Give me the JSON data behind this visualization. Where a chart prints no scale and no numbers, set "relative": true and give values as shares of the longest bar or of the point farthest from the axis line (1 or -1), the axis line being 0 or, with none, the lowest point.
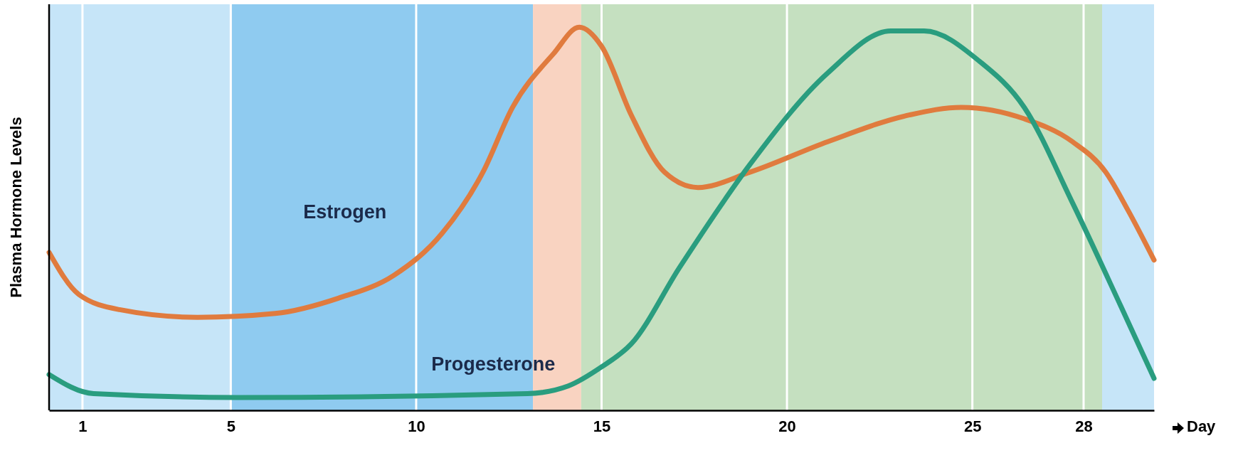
{
  "chart_data": {
    "type": "line",
    "relative": true,
    "ylabel": "Plasma Hormone Levels",
    "xlabel": "Day",
    "xlim": [
      0.1,
      29.9
    ],
    "xticks": [
      1,
      5,
      10,
      15,
      20,
      25,
      28
    ],
    "grid": "x",
    "line_style": "solid",
    "marker": "none",
    "legend": false,
    "bands": [
      {
        "axis": "x",
        "from": 0.1,
        "to": 5,
        "color": "#c6e5f8"
      },
      {
        "axis": "x",
        "from": 5,
        "to": 13.15,
        "color": "#8fcbf0"
      },
      {
        "axis": "x",
        "from": 13.15,
        "to": 14.45,
        "color": "#f9d3c1"
      },
      {
        "axis": "x",
        "from": 14.45,
        "to": 28.5,
        "color": "#c5e0c0"
      },
      {
        "axis": "x",
        "from": 28.5,
        "to": 29.9,
        "color": "#c6e5f8"
      }
    ],
    "series": [
      {
        "name": "Estrogen",
        "color": "#e07b3e",
        "x": [
          0.1,
          0.9,
          2,
          4.1,
          6.2,
          7.9,
          9.4,
          10.7,
          11.8,
          12.6,
          13.7,
          14.4,
          15,
          15.8,
          16.7,
          17.6,
          19,
          21.1,
          23.3,
          24.7,
          26.4,
          27.7,
          28.6,
          29.2,
          29.9
        ],
        "values": [
          0.41,
          0.3,
          0.26,
          0.24,
          0.25,
          0.29,
          0.35,
          0.46,
          0.62,
          0.79,
          0.93,
          1,
          0.95,
          0.77,
          0.62,
          0.58,
          0.62,
          0.7,
          0.77,
          0.79,
          0.76,
          0.7,
          0.62,
          0.52,
          0.39
        ]
      },
      {
        "name": "Progesterone",
        "color": "#2a9d7f",
        "x": [
          0.1,
          1.3,
          5.2,
          13,
          14.1,
          15,
          15.8,
          17.1,
          19,
          21.1,
          22.8,
          23.7,
          25.2,
          26.4,
          27.7,
          29,
          29.9
        ],
        "values": [
          0.09,
          0.04,
          0.03,
          0.04,
          0.06,
          0.11,
          0.17,
          0.37,
          0.64,
          0.88,
          0.99,
          0.99,
          0.91,
          0.79,
          0.54,
          0.27,
          0.08
        ]
      }
    ]
  }
}
